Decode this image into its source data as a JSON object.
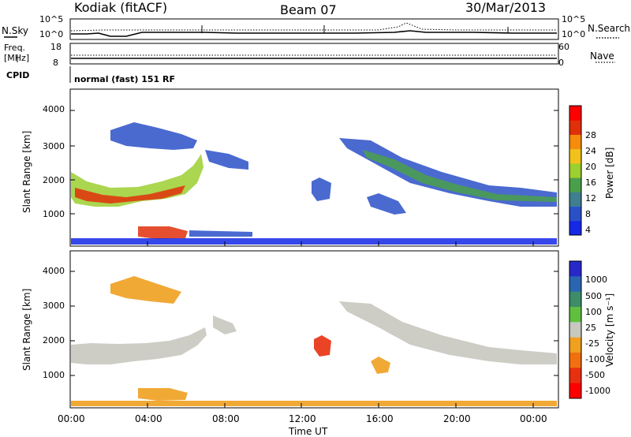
{
  "header": {
    "station": "Kodiak (fitACF)",
    "beam": "Beam 07",
    "date": "30/Mar/2013"
  },
  "strip1": {
    "left_label": "N.Sky",
    "right_label": "N.Search",
    "ticks_left": [
      "10^5",
      "10^0"
    ],
    "ticks_right": [
      "10^5",
      "10^0"
    ]
  },
  "strip2": {
    "left_label_1": "Freq.",
    "left_label_2": "[MHz]",
    "right_label": "Nave",
    "ticks_left": [
      "18",
      "8"
    ],
    "ticks_right": [
      "60",
      "0"
    ]
  },
  "cpid": {
    "label": "CPID",
    "text": "normal (fast) 151 RF"
  },
  "colors": {
    "power_scale": [
      "#1428e6",
      "#2a50c8",
      "#3f7f8f",
      "#4aa04a",
      "#9ccf30",
      "#f2c21a",
      "#f58c0c",
      "#e0300a",
      "#ff0000"
    ],
    "velocity_scale": [
      "#2828c8",
      "#2a66b0",
      "#3d8c6a",
      "#5fc040",
      "#c8c8c0",
      "#f0a020",
      "#f07010",
      "#e83010",
      "#ff0000"
    ]
  },
  "chart_data": [
    {
      "type": "heatmap",
      "title": "Power",
      "ylabel": "Slant Range [km]",
      "ylim": [
        180,
        4600
      ],
      "y_ticks": [
        "1000",
        "2000",
        "3000",
        "4000"
      ],
      "colorbar_label": "Power [dB]",
      "colorbar_ticks": [
        "4",
        "8",
        "12",
        "16",
        "20",
        "24",
        "28"
      ]
    },
    {
      "type": "heatmap",
      "title": "Velocity",
      "ylabel": "Slant Range [km]",
      "xlabel": "Time UT",
      "ylim": [
        180,
        4600
      ],
      "y_ticks": [
        "1000",
        "2000",
        "3000",
        "4000"
      ],
      "x_ticks": [
        "00:00",
        "04:00",
        "08:00",
        "12:00",
        "16:00",
        "20:00",
        "00:00"
      ],
      "colorbar_label": "Velocity [m s⁻¹]",
      "colorbar_ticks": [
        "1000",
        "500",
        "100",
        "25",
        "-25",
        "-100",
        "-500",
        "-1000"
      ]
    }
  ]
}
